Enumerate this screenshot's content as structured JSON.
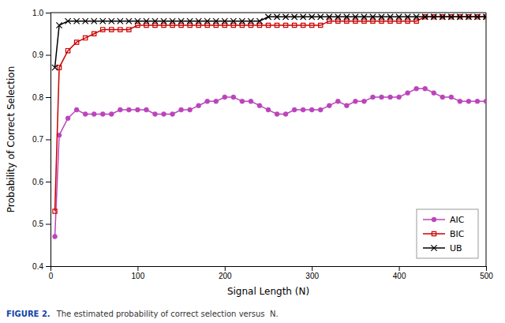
{
  "chart_data": {
    "type": "line",
    "x_label": "Signal Length (N)",
    "y_label": "Probability of Correct Selection",
    "xlim": [
      0,
      500
    ],
    "ylim": [
      0.4,
      1.0
    ],
    "xticks": [
      0,
      100,
      200,
      300,
      400,
      500
    ],
    "yticks": [
      0.4,
      0.5,
      0.6,
      0.7,
      0.8,
      0.9,
      {
        "value": 1.0,
        "label": "1.0"
      }
    ],
    "grid": false,
    "legend": "lower right",
    "annotations": [
      {
        "text": "FIGURE 2.",
        "color": "#1144aa"
      },
      {
        "text": "The estimated probability of correct selection versus  N.",
        "color": "#333333"
      }
    ],
    "x": [
      5,
      10,
      20,
      30,
      40,
      50,
      60,
      70,
      80,
      90,
      100,
      110,
      120,
      130,
      140,
      150,
      160,
      170,
      180,
      190,
      200,
      210,
      220,
      230,
      240,
      250,
      260,
      270,
      280,
      290,
      300,
      310,
      320,
      330,
      340,
      350,
      360,
      370,
      380,
      390,
      400,
      410,
      420,
      430,
      440,
      450,
      460,
      470,
      480,
      490,
      500
    ],
    "series": [
      {
        "name": "AIC",
        "color": "#bb44bb",
        "marker": "circle",
        "values": [
          0.47,
          0.71,
          0.75,
          0.77,
          0.76,
          0.76,
          0.76,
          0.76,
          0.77,
          0.77,
          0.77,
          0.77,
          0.76,
          0.76,
          0.76,
          0.77,
          0.77,
          0.78,
          0.79,
          0.79,
          0.8,
          0.8,
          0.79,
          0.79,
          0.78,
          0.77,
          0.76,
          0.76,
          0.77,
          0.77,
          0.77,
          0.77,
          0.78,
          0.79,
          0.78,
          0.79,
          0.79,
          0.8,
          0.8,
          0.8,
          0.8,
          0.81,
          0.82,
          0.82,
          0.81,
          0.8,
          0.8,
          0.79,
          0.79,
          0.79,
          0.79
        ]
      },
      {
        "name": "BIC",
        "color": "#cc0000",
        "marker": "square",
        "values": [
          0.53,
          0.87,
          0.91,
          0.93,
          0.94,
          0.95,
          0.96,
          0.96,
          0.96,
          0.96,
          0.97,
          0.97,
          0.97,
          0.97,
          0.97,
          0.97,
          0.97,
          0.97,
          0.97,
          0.97,
          0.97,
          0.97,
          0.97,
          0.97,
          0.97,
          0.97,
          0.97,
          0.97,
          0.97,
          0.97,
          0.97,
          0.97,
          0.98,
          0.98,
          0.98,
          0.98,
          0.98,
          0.98,
          0.98,
          0.98,
          0.98,
          0.98,
          0.98,
          0.99,
          0.99,
          0.99,
          0.99,
          0.99,
          0.99,
          0.99,
          0.99
        ]
      },
      {
        "name": "UB",
        "color": "#000000",
        "marker": "x",
        "values": [
          0.87,
          0.97,
          0.98,
          0.98,
          0.98,
          0.98,
          0.98,
          0.98,
          0.98,
          0.98,
          0.98,
          0.98,
          0.98,
          0.98,
          0.98,
          0.98,
          0.98,
          0.98,
          0.98,
          0.98,
          0.98,
          0.98,
          0.98,
          0.98,
          0.98,
          0.99,
          0.99,
          0.99,
          0.99,
          0.99,
          0.99,
          0.99,
          0.99,
          0.99,
          0.99,
          0.99,
          0.99,
          0.99,
          0.99,
          0.99,
          0.99,
          0.99,
          0.99,
          0.99,
          0.99,
          0.99,
          0.99,
          0.99,
          0.99,
          0.99,
          0.99
        ]
      }
    ]
  }
}
